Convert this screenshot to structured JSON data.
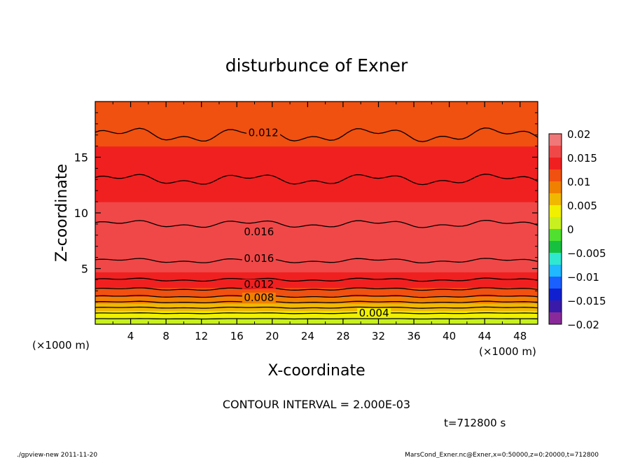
{
  "chart_data": {
    "type": "contour",
    "title": "disturbunce of Exner",
    "xlabel": "X-coordinate",
    "ylabel": "Z-coordinate",
    "x_unit": "(×1000 m)",
    "y_unit": "(×1000 m)",
    "xlim": [
      0,
      50
    ],
    "ylim": [
      0,
      20
    ],
    "x_ticks": [
      "4",
      "8",
      "12",
      "16",
      "20",
      "24",
      "28",
      "32",
      "36",
      "40",
      "44",
      "48"
    ],
    "x_tick_values": [
      4,
      8,
      12,
      16,
      20,
      24,
      28,
      32,
      36,
      40,
      44,
      48
    ],
    "y_ticks": [
      "5",
      "10",
      "15"
    ],
    "y_tick_values": [
      5,
      10,
      15
    ],
    "contour_interval_text": "CONTOUR INTERVAL = 2.000E-03",
    "time_text": "t=712800 s",
    "contour_labels": [
      {
        "text": "0.012",
        "x": 19,
        "z": 17.2
      },
      {
        "text": "0.016",
        "x": 18.5,
        "z": 8.3
      },
      {
        "text": "0.016",
        "x": 18.5,
        "z": 5.9
      },
      {
        "text": "0.012",
        "x": 18.5,
        "z": 3.6
      },
      {
        "text": "0.008",
        "x": 18.5,
        "z": 2.4
      },
      {
        "text": "0.004",
        "x": 31.5,
        "z": 1.0
      }
    ],
    "field_profile": {
      "z": [
        0,
        0.5,
        1.0,
        1.5,
        2.0,
        2.5,
        3.0,
        3.5,
        4.0,
        5.0,
        6.0,
        7.0,
        8.0,
        10.0,
        12.0,
        14.0,
        16.0,
        18.0,
        20.0
      ],
      "value": [
        0.0005,
        0.002,
        0.004,
        0.006,
        0.008,
        0.01,
        0.0115,
        0.013,
        0.014,
        0.0155,
        0.0162,
        0.0166,
        0.0165,
        0.0155,
        0.0145,
        0.0135,
        0.0125,
        0.0115,
        0.0108
      ]
    },
    "colorbar": {
      "ticks": [
        "0.02",
        "0.015",
        "0.01",
        "0.005",
        "0",
        "−0.005",
        "−0.01",
        "−0.015",
        "−0.02"
      ],
      "tick_values": [
        0.02,
        0.015,
        0.01,
        0.005,
        0,
        -0.005,
        -0.01,
        -0.015,
        -0.02
      ],
      "range": [
        -0.02,
        0.02
      ],
      "colors": [
        "#8a2a9a",
        "#3a1aa8",
        "#1020d0",
        "#1a60ff",
        "#20b8ff",
        "#30e8d0",
        "#18c040",
        "#50e030",
        "#c8f020",
        "#f0f000",
        "#f0b800",
        "#f08000",
        "#f05010",
        "#f02020",
        "#f04848",
        "#f07878"
      ]
    }
  },
  "footer": {
    "left": "./gpview-new   2011-11-20",
    "right": "MarsCond_Exner.nc@Exner,x=0:50000,z=0:20000,t=712800"
  }
}
